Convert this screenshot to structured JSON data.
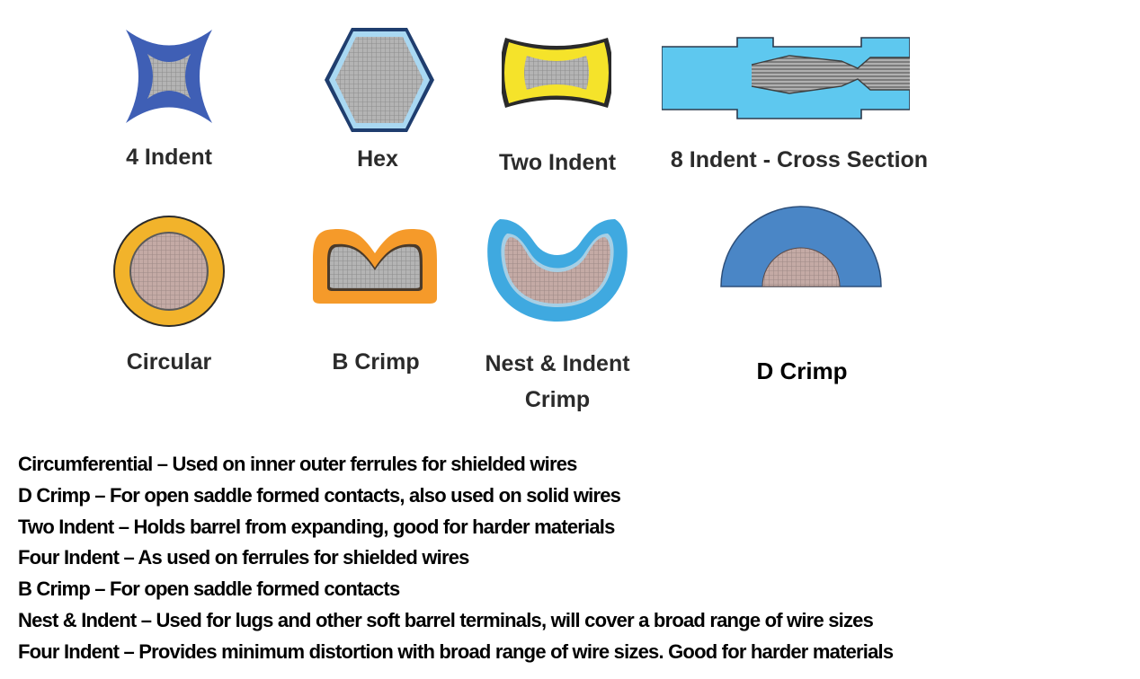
{
  "crimp_types": [
    {
      "label": "4 Indent",
      "icon": "four-indent-icon"
    },
    {
      "label": "Hex",
      "icon": "hex-icon"
    },
    {
      "label": "Two Indent",
      "icon": "two-indent-icon"
    },
    {
      "label": "8 Indent - Cross Section",
      "icon": "eight-indent-cross-section-icon"
    },
    {
      "label": "Circular",
      "icon": "circular-icon"
    },
    {
      "label": "B Crimp",
      "icon": "b-crimp-icon"
    },
    {
      "label": "Nest & Indent Crimp",
      "label_line1": "Nest & Indent",
      "label_line2": "Crimp",
      "icon": "nest-indent-icon"
    },
    {
      "label": "D Crimp",
      "icon": "d-crimp-icon"
    }
  ],
  "descriptions": [
    "Circumferential – Used on inner outer ferrules for shielded wires",
    "D Crimp – For open saddle formed contacts, also used on solid wires",
    "Two Indent – Holds barrel from expanding, good for harder materials",
    "Four Indent – As used on ferrules for shielded wires",
    "B Crimp – For open saddle formed contacts",
    "Nest & Indent – Used for lugs and other soft barrel terminals, will cover a broad range of wire sizes",
    "Four Indent – Provides minimum distortion with broad range of wire sizes. Good for harder materials"
  ],
  "colors": {
    "dark_blue": "#3f5fb5",
    "light_blue": "#5ec8ef",
    "yellow": "#f5e32a",
    "gold": "#f2b32b",
    "orange": "#f59a2a",
    "d_crimp_blue": "#4a86c6",
    "wire_mesh": "#a9a9a9"
  }
}
